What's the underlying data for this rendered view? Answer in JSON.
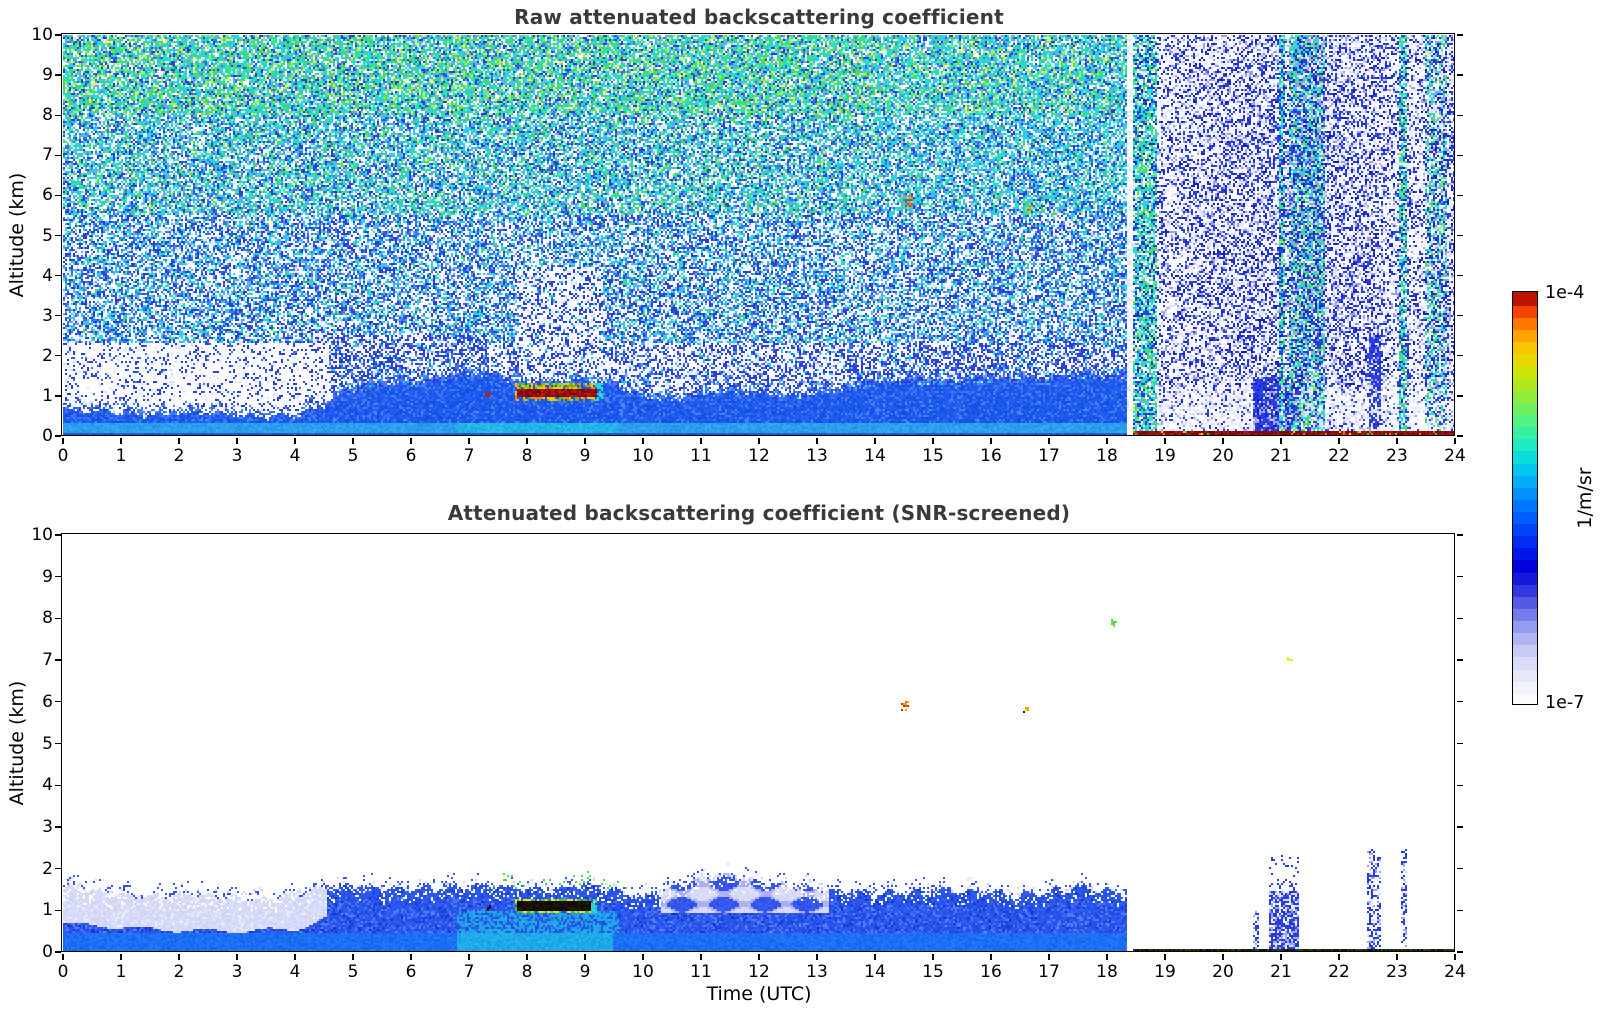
{
  "figure": {
    "background": "#ffffff"
  },
  "axes": {
    "x_label": "Time (UTC)",
    "y_label": "Altitude (km)",
    "x_ticks": [
      0,
      1,
      2,
      3,
      4,
      5,
      6,
      7,
      8,
      9,
      10,
      11,
      12,
      13,
      14,
      15,
      16,
      17,
      18,
      19,
      20,
      21,
      22,
      23,
      24
    ],
    "y_ticks": [
      0,
      1,
      2,
      3,
      4,
      5,
      6,
      7,
      8,
      9,
      10
    ],
    "x_range": [
      0,
      24
    ],
    "y_range": [
      0,
      10
    ]
  },
  "colorbar": {
    "label_top": "1e-4",
    "label_bottom": "1e-7",
    "unit": "1/m/sr",
    "scale": "log",
    "steps": 34,
    "stops": [
      [
        0.0,
        [
          255,
          255,
          255
        ]
      ],
      [
        0.05,
        [
          240,
          241,
          252
        ]
      ],
      [
        0.1,
        [
          219,
          221,
          248
        ]
      ],
      [
        0.15,
        [
          187,
          191,
          242
        ]
      ],
      [
        0.2,
        [
          142,
          148,
          236
        ]
      ],
      [
        0.25,
        [
          84,
          90,
          228
        ]
      ],
      [
        0.3,
        [
          30,
          30,
          216
        ]
      ],
      [
        0.34,
        [
          0,
          0,
          222
        ]
      ],
      [
        0.38,
        [
          0,
          30,
          240
        ]
      ],
      [
        0.43,
        [
          0,
          70,
          250
        ]
      ],
      [
        0.48,
        [
          0,
          112,
          255
        ]
      ],
      [
        0.53,
        [
          0,
          160,
          250
        ]
      ],
      [
        0.58,
        [
          0,
          205,
          235
        ]
      ],
      [
        0.62,
        [
          20,
          232,
          208
        ]
      ],
      [
        0.66,
        [
          52,
          240,
          168
        ]
      ],
      [
        0.7,
        [
          90,
          242,
          120
        ]
      ],
      [
        0.74,
        [
          130,
          238,
          70
        ]
      ],
      [
        0.78,
        [
          176,
          232,
          28
        ]
      ],
      [
        0.82,
        [
          216,
          226,
          0
        ]
      ],
      [
        0.86,
        [
          248,
          204,
          0
        ]
      ],
      [
        0.9,
        [
          255,
          160,
          0
        ]
      ],
      [
        0.94,
        [
          255,
          100,
          0
        ]
      ],
      [
        0.97,
        [
          232,
          40,
          0
        ]
      ],
      [
        1.0,
        [
          140,
          0,
          0
        ]
      ]
    ]
  },
  "chart_data": [
    {
      "type": "heatmap",
      "title": "Raw attenuated backscattering coefficient",
      "xlabel": "",
      "ylabel": "Altitude (km)",
      "x_range": [
        0,
        24
      ],
      "y_range": [
        0,
        10
      ],
      "value_range": [
        "1e-7",
        "1e-4"
      ],
      "unit": "1/m/sr",
      "description": "Lidar raw attenuated backscatter: dense colored background noise (cyan/green aloft) until 18.34 UTC, then pale blue noise; blue boundary layer below ~1.5 km; dark-red cloud streak ~8-9.2 UTC at ~1.1 km; dark-red surface echo line after 18.45 UTC.",
      "mixed_layer_top_km": [
        [
          0,
          0.62
        ],
        [
          1,
          0.58
        ],
        [
          2,
          0.52
        ],
        [
          3,
          0.5
        ],
        [
          4,
          0.5
        ],
        [
          4.5,
          0.7
        ],
        [
          5,
          1.05
        ],
        [
          5.5,
          1.25
        ],
        [
          6,
          1.3
        ],
        [
          6.5,
          1.28
        ],
        [
          7,
          1.4
        ],
        [
          7.5,
          1.45
        ],
        [
          8,
          1.3
        ],
        [
          8.5,
          1.3
        ],
        [
          9,
          1.35
        ],
        [
          9.5,
          1.15
        ],
        [
          10,
          0.95
        ],
        [
          10.5,
          0.9
        ],
        [
          11,
          1.0
        ],
        [
          11.5,
          1.0
        ],
        [
          12,
          0.95
        ],
        [
          12.5,
          1.0
        ],
        [
          13,
          1.05
        ],
        [
          13.5,
          1.1
        ],
        [
          14,
          1.2
        ],
        [
          14.5,
          1.3
        ],
        [
          15,
          1.3
        ],
        [
          15.5,
          1.25
        ],
        [
          16,
          1.3
        ],
        [
          16.5,
          1.3
        ],
        [
          17,
          1.35
        ],
        [
          17.5,
          1.45
        ],
        [
          18,
          1.4
        ],
        [
          18.34,
          1.35
        ]
      ],
      "features": [
        {
          "name": "cloud-streak",
          "t": [
            7.78,
            9.22
          ],
          "alt": [
            0.95,
            1.2
          ],
          "value": "~1e-4"
        },
        {
          "name": "noise-regime-change",
          "t": 18.34
        },
        {
          "name": "surface-echo-line",
          "t": [
            18.46,
            24
          ],
          "alt": [
            0,
            0.14
          ],
          "value": "~1e-4"
        },
        {
          "name": "dense-blue-patch",
          "t": [
            20.5,
            21.35
          ],
          "alt": [
            0,
            1.45
          ]
        },
        {
          "name": "elevated-specks",
          "points": [
            [
              14.55,
              5.84
            ],
            [
              16.62,
              5.71
            ]
          ]
        },
        {
          "name": "greenish-noise-bands",
          "t_bands": [
            [
              18.38,
              18.85
            ],
            [
              20.95,
              21.08
            ],
            [
              21.15,
              21.75
            ],
            [
              23.02,
              23.18
            ],
            [
              23.5,
              23.85
            ]
          ]
        }
      ]
    },
    {
      "type": "heatmap",
      "title": "Attenuated backscattering coefficient (SNR-screened)",
      "xlabel": "Time (UTC)",
      "ylabel": "Altitude (km)",
      "x_range": [
        0,
        24
      ],
      "y_range": [
        0,
        10
      ],
      "value_range": [
        "1e-7",
        "1e-4"
      ],
      "unit": "1/m/sr",
      "description": "Same scene after SNR screening: white background, blue boundary layer up to ~1.8 km until 18.34 UTC, dark cloud streak ~8-9.2 UTC at ~1.1 km, sparse elevated specks, blue precipitation/streak columns 20.5-23.2 UTC, thin dark surface line after 18.45 UTC.",
      "layer_top_km": [
        [
          0,
          1.5
        ],
        [
          0.5,
          1.45
        ],
        [
          1,
          1.4
        ],
        [
          1.5,
          1.38
        ],
        [
          2,
          1.35
        ],
        [
          2.5,
          1.3
        ],
        [
          3,
          1.28
        ],
        [
          3.5,
          1.3
        ],
        [
          4,
          1.35
        ],
        [
          4.5,
          1.5
        ],
        [
          5,
          1.55
        ],
        [
          5.5,
          1.6
        ],
        [
          6,
          1.55
        ],
        [
          6.5,
          1.5
        ],
        [
          7,
          1.55
        ],
        [
          7.5,
          1.6
        ],
        [
          8,
          1.55
        ],
        [
          8.5,
          1.5
        ],
        [
          9,
          1.55
        ],
        [
          9.5,
          1.5
        ],
        [
          10,
          1.35
        ],
        [
          10.5,
          1.55
        ],
        [
          11,
          1.7
        ],
        [
          11.5,
          1.8
        ],
        [
          12,
          1.75
        ],
        [
          12.5,
          1.6
        ],
        [
          13,
          1.45
        ],
        [
          13.5,
          1.4
        ],
        [
          14,
          1.45
        ],
        [
          14.5,
          1.5
        ],
        [
          15,
          1.45
        ],
        [
          15.5,
          1.4
        ],
        [
          16,
          1.45
        ],
        [
          16.5,
          1.4
        ],
        [
          17,
          1.45
        ],
        [
          17.5,
          1.5
        ],
        [
          18,
          1.45
        ],
        [
          18.34,
          1.4
        ]
      ],
      "lavender_cap_base_km": [
        [
          0,
          0.68
        ],
        [
          1,
          0.6
        ],
        [
          2,
          0.52
        ],
        [
          3,
          0.5
        ],
        [
          4,
          0.55
        ],
        [
          4.55,
          0.8
        ]
      ],
      "features": [
        {
          "name": "cloud-streak",
          "t": [
            7.8,
            9.16
          ],
          "alt": [
            0.98,
            1.22
          ],
          "value": "~1e-4 (near-saturated, dark core)"
        },
        {
          "name": "weak-signal-cap",
          "t": [
            0,
            4.55
          ],
          "alt": [
            0.6,
            1.5
          ],
          "value": "~1e-7 (pale lavender)"
        },
        {
          "name": "weak-patch",
          "t": [
            10.3,
            13.2
          ],
          "alt": [
            0.95,
            1.8
          ]
        },
        {
          "name": "layer-cutoff",
          "t": 18.34
        },
        {
          "name": "surface-line",
          "t": [
            18.45,
            24
          ],
          "alt": [
            0,
            0.08
          ]
        },
        {
          "name": "streak-columns",
          "columns": [
            {
              "t": [
                20.52,
                20.62
              ],
              "alt_max": 1.0,
              "density": 0.45
            },
            {
              "t": [
                20.8,
                21.32
              ],
              "alt_max": 1.45,
              "density": 0.85,
              "speck_alt_max": 2.35,
              "speck_density": 0.15
            },
            {
              "t": [
                22.5,
                22.72
              ],
              "alt_max": 2.45,
              "density": 0.5
            },
            {
              "t": [
                23.06,
                23.18
              ],
              "alt_max": 2.55,
              "density": 0.42
            }
          ]
        },
        {
          "name": "elevated-specks",
          "points": [
            [
              14.52,
              5.85
            ],
            [
              16.62,
              5.76
            ],
            [
              18.14,
              7.9
            ],
            [
              21.16,
              7.03
            ]
          ]
        }
      ]
    }
  ],
  "render": {
    "palette": {
      "white": [
        255,
        255,
        255
      ],
      "pale": [
        223,
        226,
        250
      ],
      "peri": [
        154,
        160,
        238
      ],
      "blue": [
        42,
        63,
        224
      ],
      "medblue": [
        63,
        111,
        240
      ],
      "lightblue": [
        95,
        168,
        245
      ],
      "deepblue": [
        21,
        32,
        200
      ],
      "cyan": [
        34,
        212,
        232
      ],
      "teal": [
        25,
        232,
        194
      ],
      "green": [
        70,
        226,
        74
      ],
      "ltgreen": [
        155,
        240,
        90
      ],
      "yellow": [
        232,
        240,
        58
      ]
    },
    "top": {
      "noise_bands": [
        {
          "min_alt": 8.0,
          "w": {
            "white": 16,
            "pale": 5,
            "blue": 10,
            "medblue": 7,
            "lightblue": 8,
            "cyan": 16,
            "teal": 12,
            "green": 15,
            "ltgreen": 9,
            "yellow": 2
          }
        },
        {
          "min_alt": 5.5,
          "w": {
            "white": 26,
            "pale": 6,
            "blue": 13,
            "medblue": 9,
            "lightblue": 10,
            "cyan": 16,
            "teal": 9,
            "green": 8,
            "ltgreen": 3
          }
        },
        {
          "min_alt": 2.3,
          "w": {
            "white": 36,
            "pale": 7,
            "blue": 20,
            "medblue": 11,
            "lightblue": 9,
            "cyan": 11,
            "teal": 4,
            "green": 2
          }
        }
      ],
      "low_left_w": {
        "white": 79,
        "pale": 6,
        "blue": 12,
        "medblue": 3
      },
      "low_mid_w": {
        "white": 50,
        "pale": 10,
        "blue": 25,
        "medblue": 8,
        "lightblue": 4,
        "cyan": 3
      },
      "low_dense_w": {
        "white": 38,
        "pale": 8,
        "blue": 34,
        "medblue": 10,
        "lightblue": 5,
        "cyan": 5
      },
      "atten_w": {
        "white": 60,
        "pale": 8,
        "blue": 22,
        "medblue": 6,
        "cyan": 4
      },
      "post_w": {
        "white": 40,
        "pale": 18,
        "peri": 12,
        "blue": 21,
        "deepblue": 9
      },
      "post_low_w": {
        "white": 55,
        "pale": 25,
        "peri": 8,
        "blue": 10,
        "deepblue": 2
      },
      "band_w": {
        "white": 18,
        "pale": 8,
        "cyan": 22,
        "teal": 16,
        "green": 14,
        "ltgreen": 6,
        "blue": 16
      },
      "patch_w": {
        "blue": 55,
        "deepblue": 20,
        "peri": 15,
        "pale": 10
      },
      "specks": [
        {
          "t": [
            14.45,
            14.64
          ],
          "alt": [
            5.65,
            6.02
          ],
          "density": 0.5,
          "colors": [
            [
              232,
              56,
              0
            ],
            [
              240,
              144,
              0
            ],
            [
              232,
              224,
              0
            ]
          ]
        },
        {
          "t": [
            16.55,
            16.72
          ],
          "alt": [
            5.55,
            5.86
          ],
          "density": 0.35,
          "colors": [
            [
              232,
              144,
              0
            ],
            [
              160,
              224,
              64
            ]
          ]
        }
      ]
    },
    "bottom": {
      "specks": [
        {
          "t": [
            14.45,
            14.6
          ],
          "alt": [
            5.72,
            6.0
          ],
          "density": 0.55,
          "colors": [
            [
              230,
              110,
              10
            ],
            [
              245,
              160,
              5
            ],
            [
              200,
              45,
              5
            ]
          ]
        },
        {
          "t": [
            16.56,
            16.68
          ],
          "alt": [
            5.68,
            5.86
          ],
          "density": 0.45,
          "colors": [
            [
              245,
              160,
              5
            ],
            [
              235,
              210,
              15
            ],
            [
              40,
              30,
              20
            ]
          ]
        },
        {
          "t": [
            18.06,
            18.22
          ],
          "alt": [
            7.8,
            7.98
          ],
          "density": 0.5,
          "colors": [
            [
              120,
              230,
              50
            ],
            [
              90,
              215,
              60
            ]
          ]
        },
        {
          "t": [
            21.12,
            21.2
          ],
          "alt": [
            6.98,
            7.08
          ],
          "density": 0.6,
          "colors": [
            [
              235,
              235,
              40
            ]
          ]
        }
      ]
    }
  }
}
